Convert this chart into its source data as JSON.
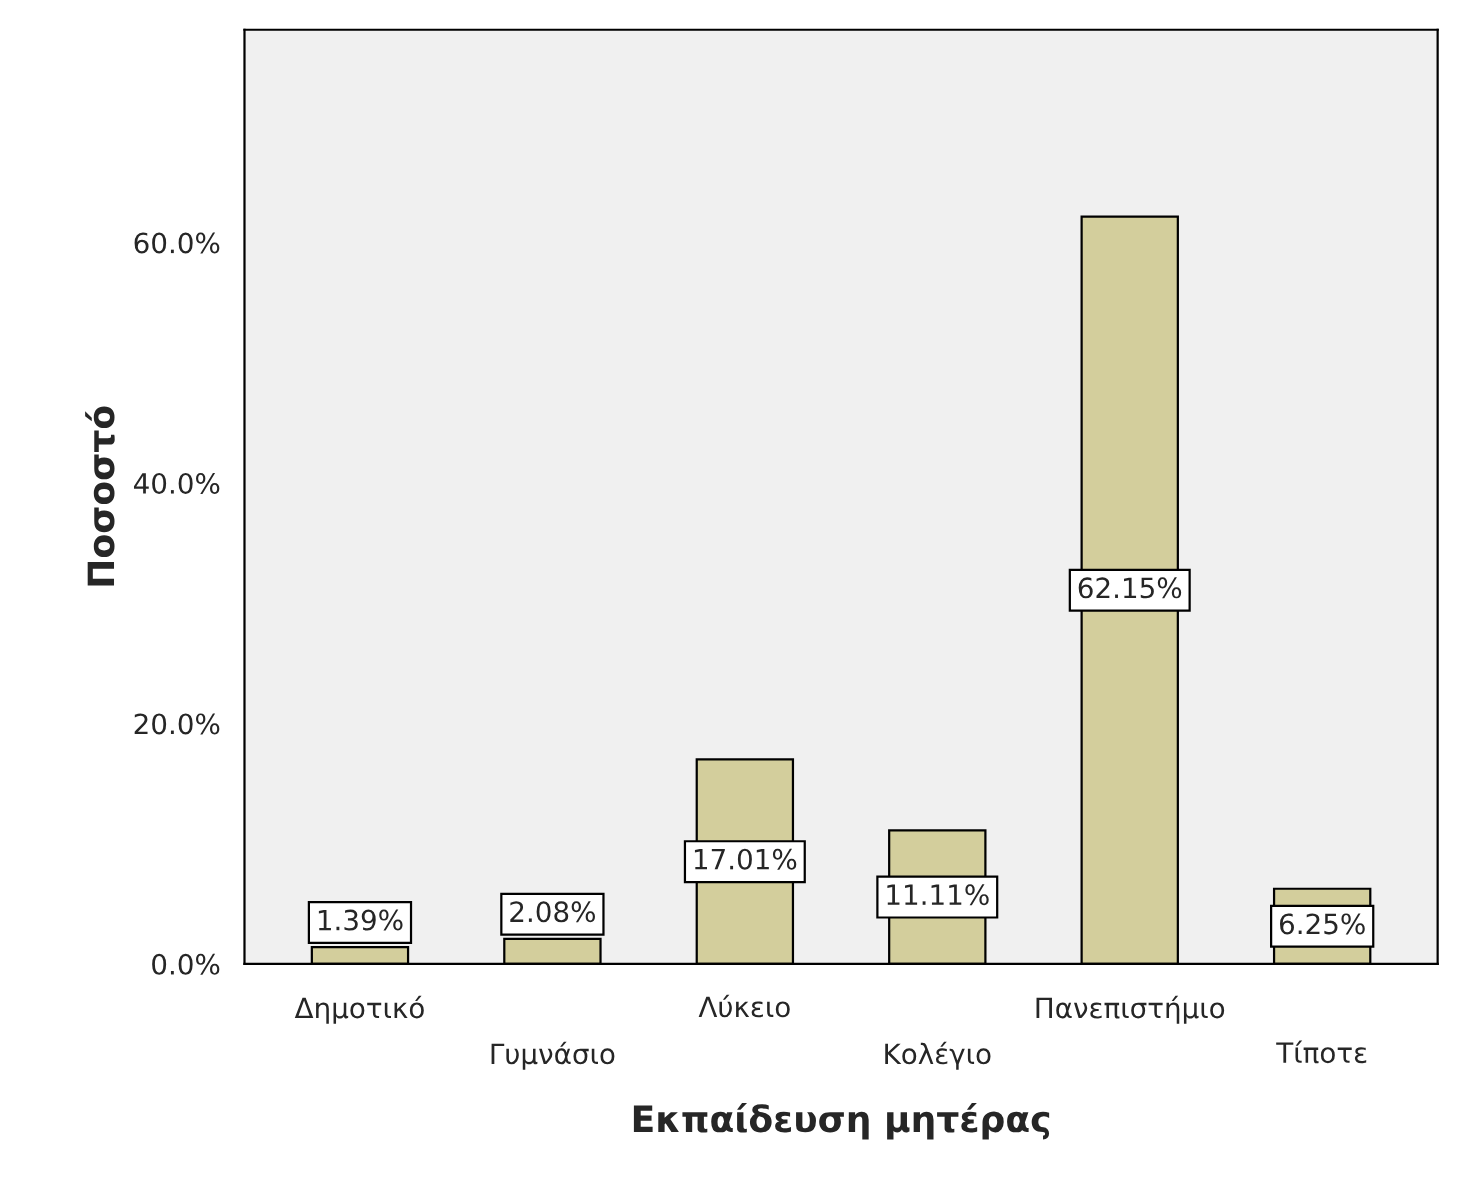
{
  "chart_data": {
    "type": "bar",
    "xlabel": "Εκπαίδευση μητέρας",
    "ylabel": "Ποσοστό",
    "categories": [
      "Δημοτικό",
      "Γυμνάσιο",
      "Λύκειο",
      "Κολέγιο",
      "Πανεπιστήμιο",
      "Τίποτε"
    ],
    "values": [
      1.39,
      2.08,
      17.01,
      11.11,
      62.15,
      6.25
    ],
    "value_labels": [
      "1.39%",
      "2.08%",
      "17.01%",
      "11.11%",
      "62.15%",
      "6.25%"
    ],
    "color": "#d3ce9c",
    "ylim": [
      0,
      77.7
    ],
    "yticks": [
      {
        "value": 0,
        "label": "0.0%"
      },
      {
        "value": 20,
        "label": "20.0%"
      },
      {
        "value": 40,
        "label": "40.0%"
      },
      {
        "value": 60,
        "label": "60.0%"
      }
    ],
    "grid": false
  }
}
